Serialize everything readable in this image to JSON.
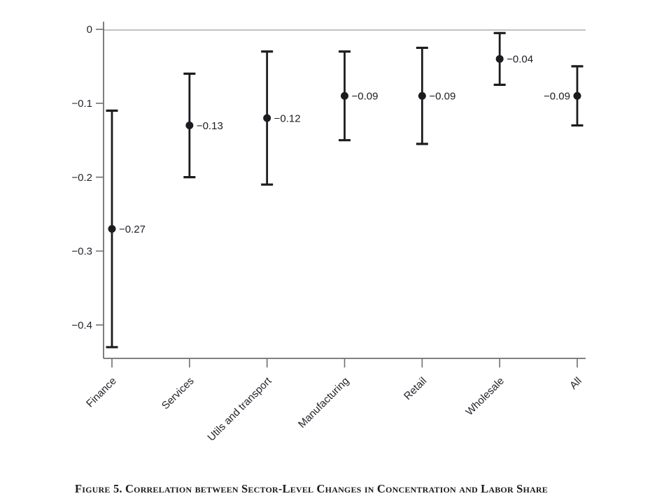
{
  "page": {
    "background": "#ffffff"
  },
  "figure": {
    "caption": "Figure 5. Correlation between Sector-Level Changes in Concentration and Labor Share"
  },
  "colors": {
    "error_bar": "#1c1c20",
    "marker": "#1c1c20",
    "axis_line": "#6f6f6f",
    "zero_line": "#bababa",
    "tick_label": "#23232b",
    "data_label": "#1d1d24"
  },
  "chart_data": {
    "type": "scatter",
    "subtype": "point-estimates-with-error-bars",
    "title": "",
    "xlabel": "",
    "ylabel": "",
    "legend": "none",
    "grid": "zero-line-only",
    "categories": [
      "Finance",
      "Services",
      "Utils and transport",
      "Manufacturing",
      "Retail",
      "Wholesale",
      "All"
    ],
    "series": [
      {
        "name": "Correlation between sector-level changes in concentration and labor share",
        "values": [
          -0.27,
          -0.13,
          -0.12,
          -0.09,
          -0.09,
          -0.04,
          -0.09
        ],
        "ci_low": [
          -0.43,
          -0.2,
          -0.21,
          -0.15,
          -0.155,
          -0.075,
          -0.13
        ],
        "ci_high": [
          -0.11,
          -0.06,
          -0.03,
          -0.03,
          -0.025,
          -0.005,
          -0.05
        ]
      }
    ],
    "data_labels": [
      "−0.27",
      "−0.13",
      "−0.12",
      "−0.09",
      "−0.09",
      "−0.04",
      "−0.09"
    ],
    "data_label_side": [
      "right",
      "right",
      "right",
      "right",
      "right",
      "right",
      "left"
    ],
    "y_ticks": [
      0,
      -0.1,
      -0.2,
      -0.3,
      -0.4
    ],
    "y_tick_labels": [
      "0",
      "−0.1",
      "−0.2",
      "−0.3",
      "−0.4"
    ],
    "ylim": [
      -0.445,
      0.01
    ]
  }
}
